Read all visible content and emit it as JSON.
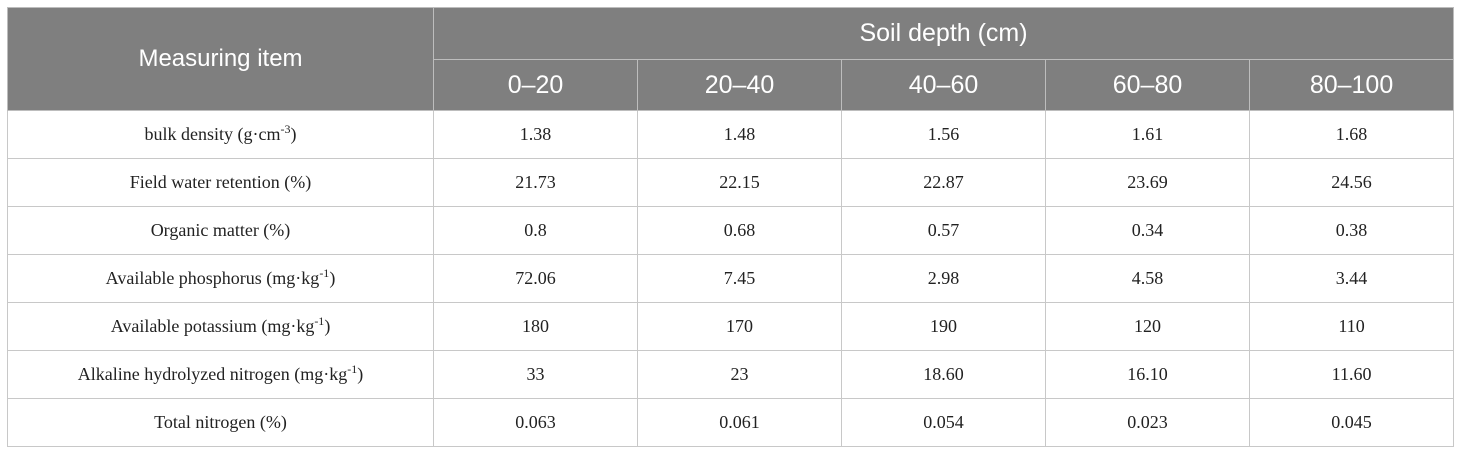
{
  "table": {
    "corner_header": "Measuring item",
    "group_header": "Soil depth (cm)",
    "depths": [
      "0–20",
      "20–40",
      "40–60",
      "60–80",
      "80–100"
    ],
    "rows": [
      {
        "label": "bulk density (g·cm",
        "sup": "-3",
        "tail": ")",
        "values": [
          "1.38",
          "1.48",
          "1.56",
          "1.61",
          "1.68"
        ]
      },
      {
        "label": "Field water retention (%)",
        "sup": "",
        "tail": "",
        "values": [
          "21.73",
          "22.15",
          "22.87",
          "23.69",
          "24.56"
        ]
      },
      {
        "label": "Organic matter (%)",
        "sup": "",
        "tail": "",
        "values": [
          "0.8",
          "0.68",
          "0.57",
          "0.34",
          "0.38"
        ]
      },
      {
        "label": "Available phosphorus (mg·kg",
        "sup": "-1",
        "tail": ")",
        "values": [
          "72.06",
          "7.45",
          "2.98",
          "4.58",
          "3.44"
        ]
      },
      {
        "label": "Available potassium (mg·kg",
        "sup": "-1",
        "tail": ")",
        "values": [
          "180",
          "170",
          "190",
          "120",
          "110"
        ]
      },
      {
        "label": "Alkaline hydrolyzed nitrogen (mg·kg",
        "sup": "-1",
        "tail": ")",
        "values": [
          "33",
          "23",
          "18.60",
          "16.10",
          "11.60"
        ]
      },
      {
        "label": "Total nitrogen (%)",
        "sup": "",
        "tail": "",
        "values": [
          "0.063",
          "0.061",
          "0.054",
          "0.023",
          "0.045"
        ]
      }
    ]
  }
}
